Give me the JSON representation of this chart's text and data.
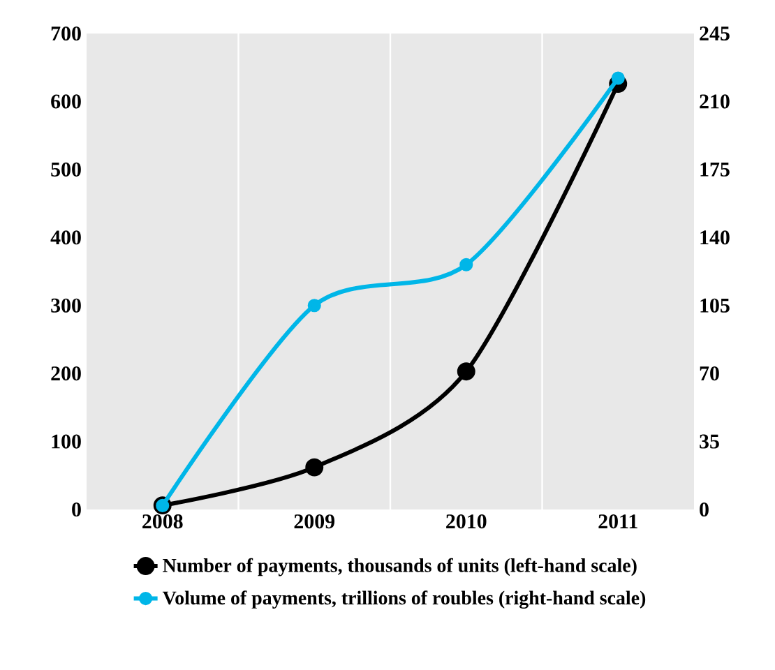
{
  "chart_data": {
    "type": "line",
    "categories": [
      "2008",
      "2009",
      "2010",
      "2011"
    ],
    "series": [
      {
        "name": "Number of payments, thousands of units (left-hand scale)",
        "color": "#000000",
        "values": [
          6,
          62,
          203,
          626
        ]
      },
      {
        "name": "Volume of payments, trillions of roubles (right-hand scale)",
        "color": "#00b6e8",
        "values": [
          2,
          105,
          126,
          222
        ],
        "axis": "y2"
      }
    ],
    "ylim": [
      0,
      700
    ],
    "yticks": [
      0,
      100,
      200,
      300,
      400,
      500,
      600,
      700
    ],
    "y2lim": [
      0,
      245
    ],
    "y2ticks": [
      0,
      35,
      70,
      105,
      140,
      175,
      210,
      245
    ],
    "grid": "x",
    "legend": "bottom",
    "marker": "circle",
    "line_style": "solid"
  }
}
